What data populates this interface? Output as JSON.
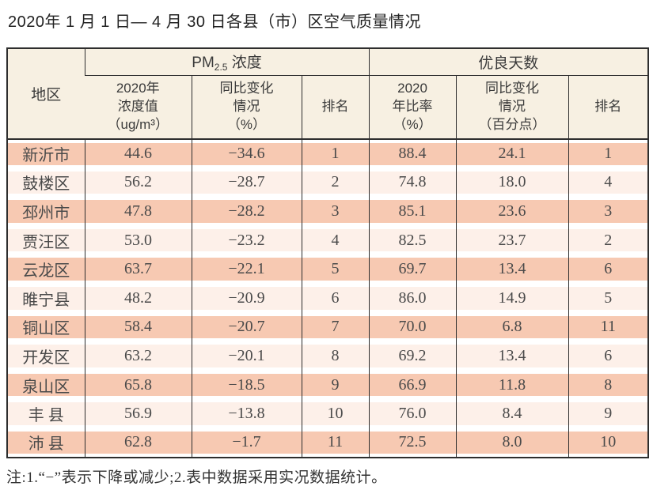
{
  "title": "2020年 1 月 1 日— 4 月 30 日各县（市）区空气质量情况",
  "table": {
    "region_header": "地区",
    "pm25_group": {
      "base": "PM",
      "sub": "2.5",
      "rest": " 浓度"
    },
    "good_days_group": "优良天数",
    "sub_headers": [
      "2020年\n浓度值\n（ug/m³）",
      "同比变化\n情况\n（%）",
      "排名",
      "2020\n年比率\n（%）",
      "同比变化\n情况\n（百分点）",
      "排名"
    ],
    "rows": [
      {
        "region": "新沂市",
        "pm_value": "44.6",
        "pm_change": "−34.6",
        "pm_rank": "1",
        "good_rate": "88.4",
        "good_change": "24.1",
        "good_rank": "1"
      },
      {
        "region": "鼓楼区",
        "pm_value": "56.2",
        "pm_change": "−28.7",
        "pm_rank": "2",
        "good_rate": "74.8",
        "good_change": "18.0",
        "good_rank": "4"
      },
      {
        "region": "邳州市",
        "pm_value": "47.8",
        "pm_change": "−28.2",
        "pm_rank": "3",
        "good_rate": "85.1",
        "good_change": "23.6",
        "good_rank": "3"
      },
      {
        "region": "贾汪区",
        "pm_value": "53.0",
        "pm_change": "−23.2",
        "pm_rank": "4",
        "good_rate": "82.5",
        "good_change": "23.7",
        "good_rank": "2"
      },
      {
        "region": "云龙区",
        "pm_value": "63.7",
        "pm_change": "−22.1",
        "pm_rank": "5",
        "good_rate": "69.7",
        "good_change": "13.4",
        "good_rank": "6"
      },
      {
        "region": "睢宁县",
        "pm_value": "48.2",
        "pm_change": "−20.9",
        "pm_rank": "6",
        "good_rate": "86.0",
        "good_change": "14.9",
        "good_rank": "5"
      },
      {
        "region": "铜山区",
        "pm_value": "58.4",
        "pm_change": "−20.7",
        "pm_rank": "7",
        "good_rate": "70.0",
        "good_change": "6.8",
        "good_rank": "11"
      },
      {
        "region": "开发区",
        "pm_value": "63.2",
        "pm_change": "−20.1",
        "pm_rank": "8",
        "good_rate": "69.2",
        "good_change": "13.4",
        "good_rank": "6"
      },
      {
        "region": "泉山区",
        "pm_value": "65.8",
        "pm_change": "−18.5",
        "pm_rank": "9",
        "good_rate": "66.9",
        "good_change": "11.8",
        "good_rank": "8"
      },
      {
        "region": "丰 县",
        "pm_value": "56.9",
        "pm_change": "−13.8",
        "pm_rank": "10",
        "good_rate": "76.0",
        "good_change": "8.4",
        "good_rank": "9"
      },
      {
        "region": "沛 县",
        "pm_value": "62.8",
        "pm_change": "−1.7",
        "pm_rank": "11",
        "good_rate": "72.5",
        "good_change": "8.0",
        "good_rank": "10"
      }
    ]
  },
  "footnote": "注:1.“−”表示下降或减少;2.表中数据采用实况数据统计。",
  "colors": {
    "row_dark": "#f7c9b2",
    "row_light": "#fdf0e9",
    "header_bg": "#f7f0e2",
    "border": "#2e2e2e"
  }
}
